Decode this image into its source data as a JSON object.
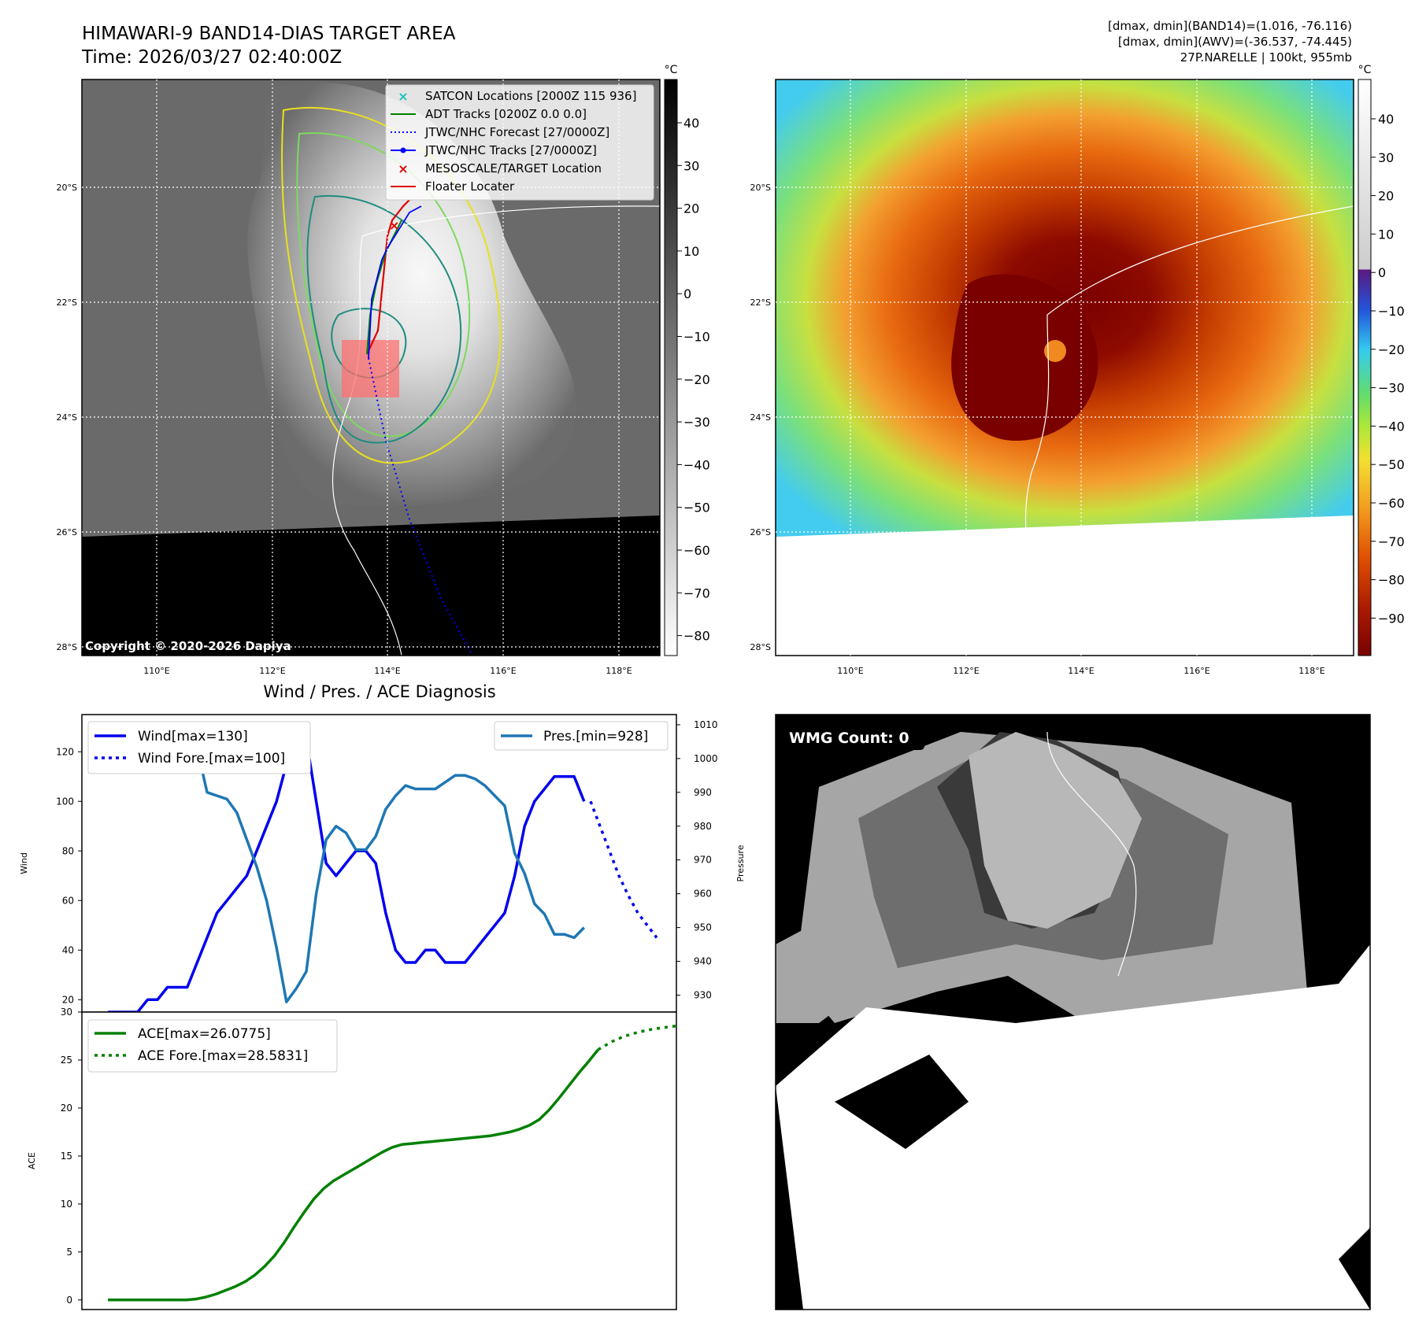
{
  "title": {
    "main": "HIMAWARI-9 BAND14-DIAS TARGET AREA",
    "time": "Time: 2026/03/27 02:40:00Z",
    "info_line1": "[dmax, dmin](BAND14)=(1.016, -76.116)",
    "info_line2": "[dmax, dmin](AWV)=(-36.537, -74.445)",
    "info_line3": "27P.NARELLE | 100kt, 955mb"
  },
  "colorbar": {
    "unit": "°C",
    "gray_ticks": [
      "40",
      "30",
      "20",
      "10",
      "0",
      "−10",
      "−20",
      "−30",
      "−40",
      "−50",
      "−60",
      "−70",
      "−80"
    ],
    "color_ticks": [
      "40",
      "30",
      "20",
      "10",
      "0",
      "−10",
      "−20",
      "−30",
      "−40",
      "−50",
      "−60",
      "−70",
      "−80",
      "−90"
    ]
  },
  "map": {
    "lat_labels": [
      "20°S",
      "22°S",
      "24°S",
      "26°S",
      "28°S"
    ],
    "lon_labels": [
      "110°E",
      "112°E",
      "114°E",
      "116°E",
      "118°E"
    ],
    "copyright": "Copyright © 2020-2026 Dapiya"
  },
  "legend": {
    "items": [
      "SATCON Locations [2000Z 115 936]",
      "ADT Tracks [0200Z 0.0 0.0]",
      "JTWC/NHC Forecast [27/0000Z]",
      "JTWC/NHC Tracks [27/0000Z]",
      "MESOSCALE/TARGET Location",
      "Floater Locater"
    ],
    "colors": [
      "#19c2c2",
      "#008000",
      "#0000ff",
      "#0000ff",
      "#e00000",
      "#e00000"
    ]
  },
  "diagnosis_title": "Wind / Pres. / ACE Diagnosis",
  "wmg_label": "WMG Count: 0",
  "chart_data": [
    {
      "type": "line",
      "title": "Wind / Pres. / ACE Diagnosis",
      "ylabel": "Wind",
      "y2label": "Pressure",
      "ylim": [
        15,
        135
      ],
      "y2lim": [
        925,
        1013
      ],
      "yticks": [
        "20",
        "40",
        "60",
        "80",
        "100",
        "120"
      ],
      "y2ticks": [
        "930",
        "940",
        "950",
        "960",
        "970",
        "980",
        "990",
        "1000",
        "1010"
      ],
      "legend": [
        "Wind[max=130]",
        "Wind Fore.[max=100]",
        "Pres.[min=928]"
      ],
      "series": [
        {
          "name": "Wind",
          "color": "#0000ee",
          "style": "solid",
          "values": [
            15,
            15,
            15,
            15,
            20,
            20,
            25,
            25,
            25,
            35,
            45,
            55,
            60,
            65,
            70,
            80,
            90,
            100,
            115,
            130,
            125,
            100,
            75,
            70,
            75,
            80,
            80,
            75,
            55,
            40,
            35,
            35,
            40,
            40,
            35,
            35,
            35,
            40,
            45,
            50,
            55,
            70,
            90,
            100,
            105,
            110,
            110,
            110,
            100
          ]
        },
        {
          "name": "Wind Fore.",
          "color": "#0000ee",
          "style": "dotted",
          "start_index": 48,
          "values": [
            100,
            90,
            80,
            70,
            62,
            55,
            50,
            45
          ]
        },
        {
          "name": "Pres.",
          "color": "#1f77b4",
          "style": "solid",
          "axis": "right",
          "values": [
            1009,
            1009,
            1009,
            1006,
            1007,
            1006,
            1005,
            1005,
            1005,
            1003,
            990,
            989,
            988,
            984,
            976,
            968,
            958,
            944,
            928,
            932,
            937,
            960,
            976,
            980,
            978,
            973,
            973,
            977,
            985,
            989,
            992,
            991,
            991,
            991,
            993,
            995,
            995,
            994,
            992,
            989,
            986,
            972,
            966,
            957,
            954,
            948,
            948,
            947,
            950
          ]
        }
      ]
    },
    {
      "type": "line",
      "ylabel": "ACE",
      "ylim": [
        -1,
        30
      ],
      "yticks": [
        "0",
        "5",
        "10",
        "15",
        "20",
        "25",
        "30"
      ],
      "legend": [
        "ACE[max=26.0775]",
        "ACE Fore.[max=28.5831]"
      ],
      "series": [
        {
          "name": "ACE",
          "color": "#008000",
          "style": "solid",
          "values": [
            0,
            0,
            0,
            0,
            0,
            0,
            0,
            0,
            0,
            0.1,
            0.3,
            0.6,
            1.0,
            1.4,
            1.9,
            2.6,
            3.5,
            4.6,
            6.0,
            7.6,
            9.1,
            10.5,
            11.6,
            12.4,
            13.0,
            13.6,
            14.2,
            14.8,
            15.4,
            15.9,
            16.2,
            16.3,
            16.4,
            16.5,
            16.6,
            16.7,
            16.8,
            16.9,
            17.0,
            17.1,
            17.3,
            17.5,
            17.8,
            18.2,
            18.8,
            19.8,
            21.0,
            22.3,
            23.6,
            24.8,
            26.08
          ]
        },
        {
          "name": "ACE Fore.",
          "color": "#008000",
          "style": "dotted",
          "start_index": 50,
          "values": [
            26.08,
            26.9,
            27.5,
            27.9,
            28.2,
            28.4,
            28.58
          ]
        }
      ]
    }
  ]
}
